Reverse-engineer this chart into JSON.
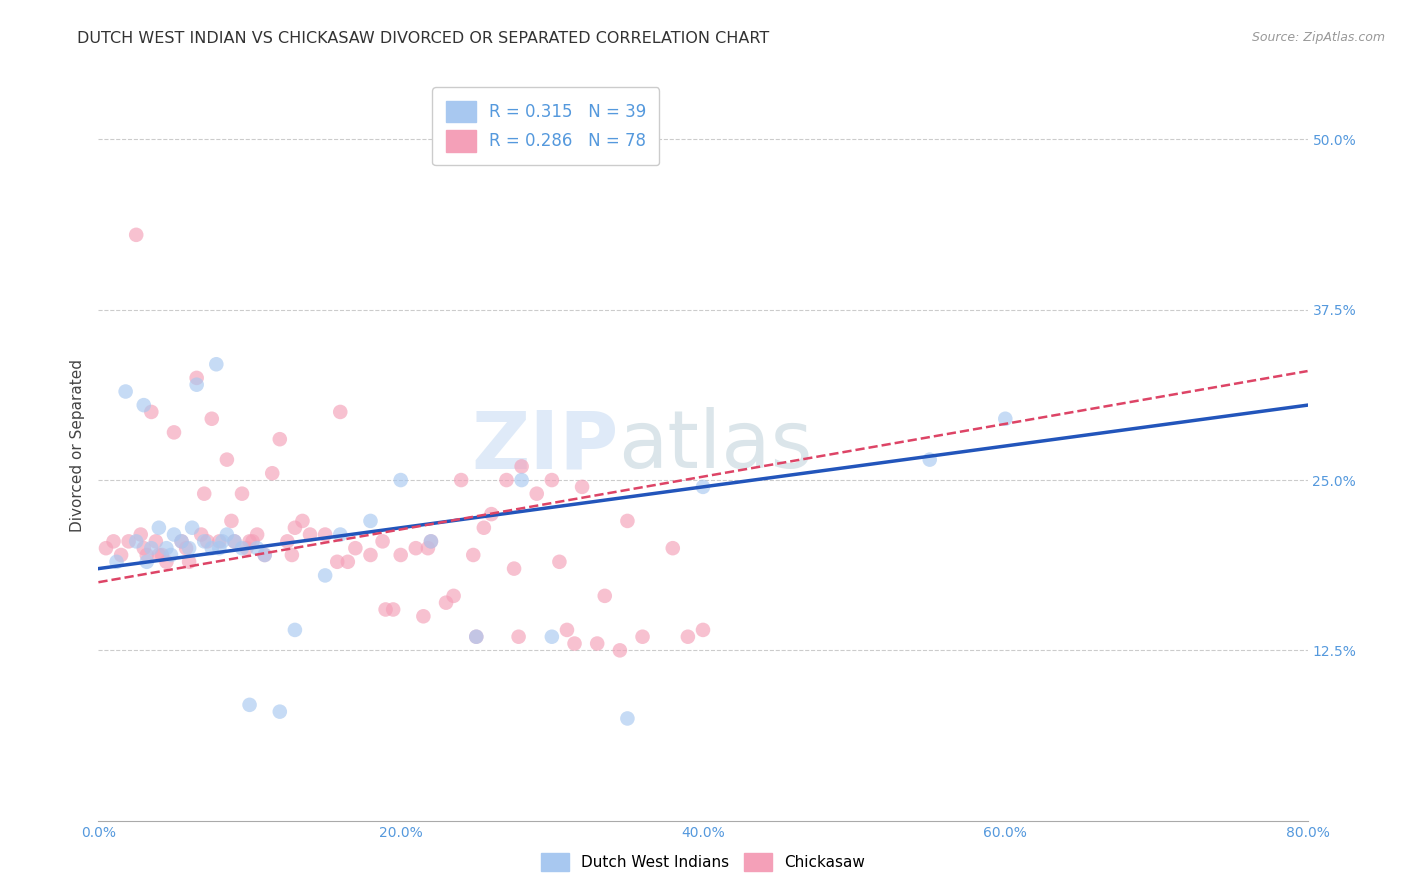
{
  "title": "DUTCH WEST INDIAN VS CHICKASAW DIVORCED OR SEPARATED CORRELATION CHART",
  "source": "Source: ZipAtlas.com",
  "ylabel": "Divorced or Separated",
  "xlabel_values": [
    0.0,
    20.0,
    40.0,
    60.0,
    80.0
  ],
  "ylabel_values": [
    12.5,
    25.0,
    37.5,
    50.0
  ],
  "xmin": 0.0,
  "xmax": 80.0,
  "ymin": 0.0,
  "ymax": 55.0,
  "blue_R": 0.315,
  "blue_N": 39,
  "pink_R": 0.286,
  "pink_N": 78,
  "blue_color": "#A8C8F0",
  "pink_color": "#F4A0B8",
  "blue_line_color": "#2255BB",
  "pink_line_color": "#DD4466",
  "legend_label_blue": "Dutch West Indians",
  "legend_label_pink": "Chickasaw",
  "watermark_zip": "ZIP",
  "watermark_atlas": "atlas",
  "title_fontsize": 11.5,
  "axis_label_color": "#5599DD",
  "blue_x": [
    1.2,
    1.8,
    2.5,
    3.0,
    3.5,
    4.0,
    4.5,
    5.0,
    5.5,
    6.0,
    6.5,
    7.0,
    7.5,
    7.8,
    8.2,
    8.5,
    9.0,
    9.5,
    10.0,
    11.0,
    12.0,
    13.0,
    15.0,
    16.0,
    18.0,
    20.0,
    22.0,
    25.0,
    28.0,
    30.0,
    35.0,
    40.0,
    55.0,
    60.0,
    3.2,
    4.8,
    6.2,
    8.0,
    10.5
  ],
  "blue_y": [
    19.0,
    31.5,
    20.5,
    30.5,
    20.0,
    21.5,
    20.0,
    21.0,
    20.5,
    20.0,
    32.0,
    20.5,
    20.0,
    33.5,
    20.5,
    21.0,
    20.5,
    20.0,
    8.5,
    19.5,
    8.0,
    14.0,
    18.0,
    21.0,
    22.0,
    25.0,
    20.5,
    13.5,
    25.0,
    13.5,
    7.5,
    24.5,
    26.5,
    29.5,
    19.0,
    19.5,
    21.5,
    20.0,
    20.0
  ],
  "pink_x": [
    0.5,
    1.0,
    1.5,
    2.0,
    2.5,
    3.0,
    3.2,
    3.5,
    4.0,
    4.5,
    5.0,
    5.5,
    6.0,
    6.5,
    7.0,
    7.5,
    8.0,
    8.5,
    9.0,
    9.5,
    10.0,
    10.5,
    11.0,
    12.0,
    12.5,
    13.0,
    14.0,
    15.0,
    16.0,
    17.0,
    18.0,
    19.0,
    20.0,
    21.0,
    22.0,
    23.0,
    24.0,
    25.0,
    26.0,
    27.0,
    28.0,
    29.0,
    30.0,
    31.0,
    32.0,
    33.0,
    35.0,
    38.0,
    40.0,
    2.8,
    4.2,
    5.8,
    7.2,
    8.8,
    10.2,
    11.5,
    13.5,
    16.5,
    19.5,
    21.5,
    23.5,
    25.5,
    27.5,
    30.5,
    33.5,
    36.0,
    39.0,
    3.8,
    6.8,
    9.8,
    12.8,
    15.8,
    18.8,
    21.8,
    24.8,
    27.8,
    31.5,
    34.5
  ],
  "pink_y": [
    20.0,
    20.5,
    19.5,
    20.5,
    43.0,
    20.0,
    19.5,
    30.0,
    19.5,
    19.0,
    28.5,
    20.5,
    19.0,
    32.5,
    24.0,
    29.5,
    20.5,
    26.5,
    20.5,
    24.0,
    20.5,
    21.0,
    19.5,
    28.0,
    20.5,
    21.5,
    21.0,
    21.0,
    30.0,
    20.0,
    19.5,
    15.5,
    19.5,
    20.0,
    20.5,
    16.0,
    25.0,
    13.5,
    22.5,
    25.0,
    26.0,
    24.0,
    25.0,
    14.0,
    24.5,
    13.0,
    22.0,
    20.0,
    14.0,
    21.0,
    19.5,
    20.0,
    20.5,
    22.0,
    20.5,
    25.5,
    22.0,
    19.0,
    15.5,
    15.0,
    16.5,
    21.5,
    18.5,
    19.0,
    16.5,
    13.5,
    13.5,
    20.5,
    21.0,
    20.0,
    19.5,
    19.0,
    20.5,
    20.0,
    19.5,
    13.5,
    13.0,
    12.5
  ],
  "blue_trend_x0": 0.0,
  "blue_trend_y0": 18.5,
  "blue_trend_x1": 80.0,
  "blue_trend_y1": 30.5,
  "pink_trend_x0": 0.0,
  "pink_trend_y0": 17.5,
  "pink_trend_x1": 80.0,
  "pink_trend_y1": 33.0
}
